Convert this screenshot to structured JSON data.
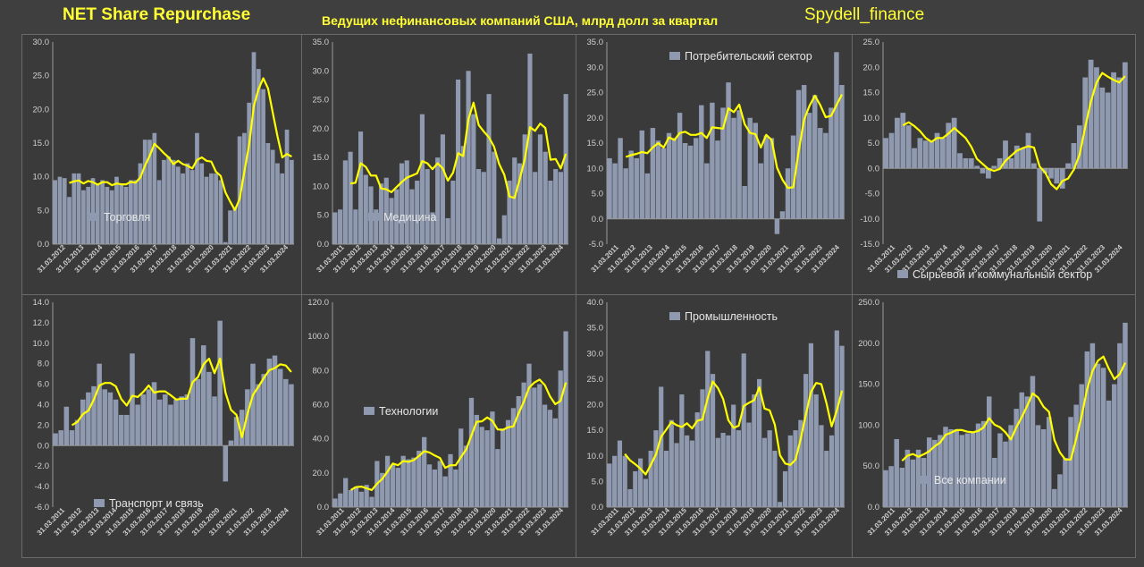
{
  "header": {
    "left": "NET Share Repurchase",
    "center": "Ведущих нефинансовых компаний США, млрд долл за квартал",
    "right": "Spydell_finance"
  },
  "colors": {
    "bar": "#8f9ab0",
    "line": "#ffff00",
    "axis": "#9a9a9a",
    "background": "#3a3a3a"
  },
  "chart_data": [
    {
      "type": "bar",
      "legend": "Торговля",
      "legend_pos": "bottom-left",
      "ylim": [
        0,
        30
      ],
      "ytick": 5,
      "xticks": [
        "31.03.2012",
        "31.03.2013",
        "31.03.2014",
        "31.03.2015",
        "31.03.2016",
        "31.03.2017",
        "31.03.2018",
        "31.03.2019",
        "31.03.2020",
        "31.03.2021",
        "31.03.2022",
        "31.03.2023",
        "31.03.2024"
      ],
      "values": [
        9.5,
        10,
        9.8,
        7,
        10.5,
        10.5,
        8,
        8.5,
        9.8,
        9,
        9.5,
        8.5,
        8,
        10,
        9,
        8.5,
        9.5,
        9.5,
        12,
        15.5,
        15.5,
        16.5,
        9.5,
        12.5,
        13,
        12.5,
        11.5,
        10.5,
        12,
        11,
        16.5,
        12,
        10,
        10.5,
        10.5,
        9.5,
        0.3,
        5,
        5.5,
        16,
        16.5,
        21,
        28.5,
        26,
        23,
        15,
        14,
        12,
        10.5,
        17,
        12.5
      ]
    },
    {
      "type": "bar",
      "legend": "Медицина",
      "legend_pos": "bottom-left",
      "ylim": [
        0,
        35
      ],
      "ytick": 5,
      "xticks": [
        "31.03.2011",
        "31.03.2012",
        "31.03.2013",
        "31.03.2014",
        "31.03.2015",
        "31.03.2016",
        "31.03.2017",
        "31.03.2018",
        "31.03.2019",
        "31.03.2020",
        "31.03.2021",
        "31.03.2022",
        "31.03.2023",
        "31.03.2024"
      ],
      "values": [
        5.5,
        6,
        14.5,
        16,
        6,
        19.5,
        12,
        10,
        6,
        10.5,
        11.5,
        8,
        9.5,
        14,
        14.5,
        9.5,
        11,
        22.5,
        13,
        5.5,
        15,
        19,
        4.5,
        11,
        28.5,
        17,
        30,
        22.5,
        13,
        12.5,
        26,
        16,
        1,
        5,
        11,
        15,
        14,
        19,
        33,
        12.5,
        19,
        16,
        11,
        13,
        12.5,
        26
      ]
    },
    {
      "type": "bar",
      "legend": "Потребительский сектор",
      "legend_pos": "top-left",
      "ylim": [
        -5,
        35
      ],
      "ytick": 5,
      "xticks": [
        "31.03.2011",
        "31.03.2012",
        "31.03.2013",
        "31.03.2014",
        "31.03.2015",
        "31.03.2016",
        "31.03.2017",
        "31.03.2018",
        "31.03.2019",
        "31.03.2020",
        "31.03.2021",
        "31.03.2022",
        "31.03.2023",
        "31.03.2024"
      ],
      "values": [
        12,
        11,
        16,
        10,
        13.5,
        12,
        17.5,
        9,
        18,
        15.5,
        14,
        17,
        16,
        21,
        15,
        14.5,
        16,
        22.5,
        11,
        23,
        15.5,
        22,
        27,
        20,
        21.5,
        6.5,
        20,
        19,
        11,
        16.5,
        16,
        -3,
        1.5,
        10,
        16.5,
        25.5,
        26.5,
        21,
        24.5,
        18,
        17,
        22,
        33,
        26.5
      ]
    },
    {
      "type": "bar",
      "legend": "Сырьевой и коммунальный сектор",
      "legend_pos": "bottom-left",
      "ylim": [
        -15,
        25
      ],
      "ytick": 5,
      "xticks": [
        "31.03.2011",
        "31.03.2012",
        "31.03.2013",
        "31.03.2014",
        "31.03.2015",
        "31.03.2016",
        "31.03.2017",
        "31.03.2018",
        "31.03.2019",
        "31.03.2020",
        "31.03.2021",
        "31.03.2022",
        "31.03.2023",
        "31.03.2024"
      ],
      "values": [
        6,
        7,
        10,
        11,
        8.5,
        4,
        6,
        5.5,
        5.5,
        7,
        6,
        9,
        10,
        3,
        2,
        2,
        0.5,
        -1,
        -2,
        0.5,
        2,
        5.5,
        2,
        4.5,
        4,
        7,
        1,
        -10.5,
        -1,
        -2,
        -3,
        -4,
        1,
        5,
        8.5,
        18,
        21.5,
        20,
        16,
        15,
        19,
        18,
        21
      ]
    },
    {
      "type": "bar",
      "legend": "Транспорт и связь",
      "legend_pos": "bottom-left",
      "ylim": [
        -6,
        14
      ],
      "ytick": 2,
      "xticks": [
        "31.03.2011",
        "31.03.2012",
        "31.03.2013",
        "31.03.2014",
        "31.03.2015",
        "31.03.2016",
        "31.03.2017",
        "31.03.2018",
        "31.03.2019",
        "31.03.2020",
        "31.03.2021",
        "31.03.2022",
        "31.03.2023",
        "31.03.2024"
      ],
      "values": [
        1.2,
        1.5,
        3.8,
        1.5,
        2.5,
        4.5,
        5.2,
        5.8,
        8,
        5.5,
        5.2,
        4.5,
        3,
        3,
        9,
        4,
        5,
        5.5,
        6.2,
        4.5,
        5,
        4,
        4.5,
        4.8,
        5,
        10.5,
        6.5,
        9.8,
        7.2,
        4.8,
        12.2,
        -3.5,
        0.5,
        2.8,
        3.5,
        5.5,
        8,
        6,
        7,
        8.5,
        8.8,
        7.5,
        6.5,
        6
      ]
    },
    {
      "type": "bar",
      "legend": "Технологии",
      "legend_pos": "middle-left",
      "ylim": [
        0,
        120
      ],
      "ytick": 20,
      "xticks": [
        "31.03.2011",
        "31.03.2012",
        "31.03.2013",
        "31.03.2014",
        "31.03.2015",
        "31.03.2016",
        "31.03.2017",
        "31.03.2018",
        "31.03.2019",
        "31.03.2020",
        "31.03.2021",
        "31.03.2022",
        "31.03.2023",
        "31.03.2024"
      ],
      "values": [
        5,
        8,
        17,
        10,
        12,
        9,
        13,
        6,
        27,
        20,
        30,
        25,
        23,
        30,
        28,
        29,
        33,
        41,
        25,
        22,
        27,
        18,
        31,
        22,
        46,
        36,
        64,
        54,
        47,
        45,
        56,
        34,
        46,
        51,
        58,
        65,
        73,
        84,
        70,
        72,
        60,
        57,
        52,
        80,
        103
      ]
    },
    {
      "type": "bar",
      "legend": "Промышленность",
      "legend_pos": "top-left",
      "ylim": [
        0,
        40
      ],
      "ytick": 5,
      "xticks": [
        "31.03.2011",
        "31.03.2012",
        "31.03.2013",
        "31.03.2014",
        "31.03.2015",
        "31.03.2016",
        "31.03.2017",
        "31.03.2018",
        "31.03.2019",
        "31.03.2020",
        "31.03.2021",
        "31.03.2022",
        "31.03.2023",
        "31.03.2024"
      ],
      "values": [
        8.5,
        10,
        13,
        10,
        3.5,
        7,
        9.5,
        5.5,
        11,
        15,
        23.5,
        11,
        17,
        12.5,
        22,
        14,
        13,
        18.5,
        23,
        30.5,
        26,
        13.5,
        14.5,
        14,
        20,
        15,
        30,
        16.5,
        22,
        25,
        13.5,
        15,
        11,
        1,
        7,
        14,
        15,
        17,
        26,
        32,
        22,
        16,
        11,
        14,
        34.5,
        31.5
      ]
    },
    {
      "type": "bar",
      "legend": "Все компании",
      "legend_pos": "bottom-left",
      "ylim": [
        0,
        250
      ],
      "ytick": 50,
      "xticks": [
        "31.03.2011",
        "31.03.2012",
        "31.03.2013",
        "31.03.2014",
        "31.03.2015",
        "31.03.2016",
        "31.03.2017",
        "31.03.2018",
        "31.03.2019",
        "31.03.2020",
        "31.03.2021",
        "31.03.2022",
        "31.03.2023",
        "31.03.2024"
      ],
      "values": [
        45,
        50,
        83,
        48,
        70,
        58,
        70,
        60,
        85,
        82,
        88,
        98,
        95,
        95,
        88,
        90,
        92,
        102,
        105,
        135,
        60,
        90,
        80,
        100,
        120,
        140,
        135,
        160,
        100,
        95,
        110,
        22,
        40,
        60,
        110,
        125,
        150,
        190,
        200,
        175,
        170,
        130,
        150,
        200,
        225
      ]
    }
  ]
}
